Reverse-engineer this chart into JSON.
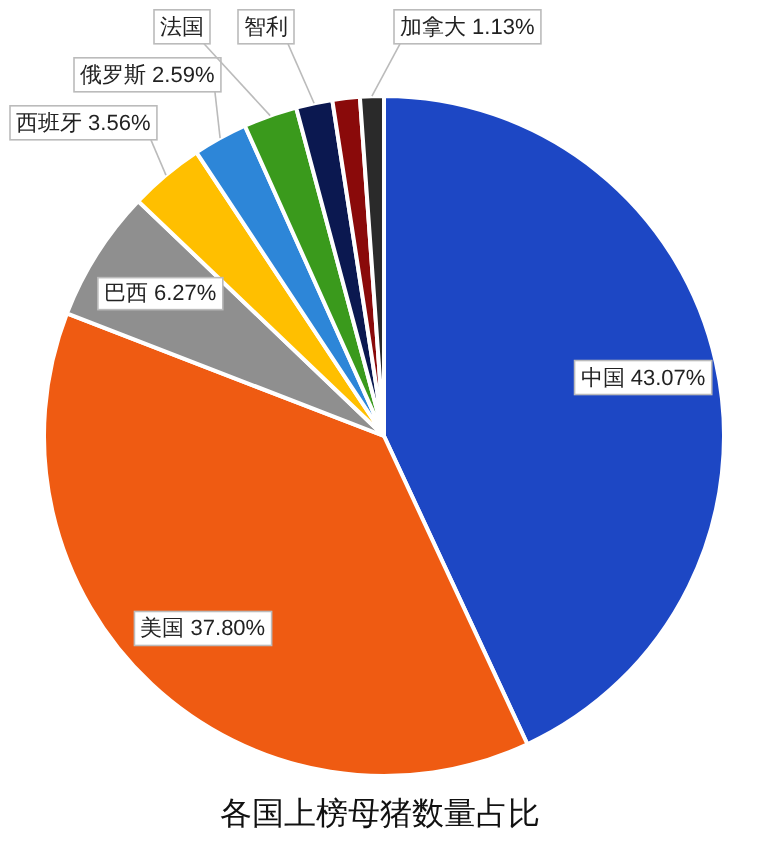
{
  "chart_data": {
    "type": "pie",
    "title": "各国上榜母猪数量占比",
    "categories": [
      "中国",
      "美国",
      "巴西",
      "西班牙",
      "俄罗斯",
      "法国",
      "智利",
      null,
      "加拿大"
    ],
    "values": [
      43.07,
      37.8,
      6.27,
      3.56,
      2.59,
      2.55,
      1.73,
      1.3,
      1.13
    ],
    "colors": [
      "#1d47c4",
      "#ef5b12",
      "#8f8f8f",
      "#ffbf00",
      "#2d86d8",
      "#3a9a1c",
      "#0b1850",
      "#8a0a0a",
      "#2a2a2a"
    ],
    "value_labels": [
      "43.07%",
      "37.80%",
      "6.27%",
      "3.56%",
      "2.59%",
      null,
      null,
      null,
      "1.13%"
    ]
  }
}
